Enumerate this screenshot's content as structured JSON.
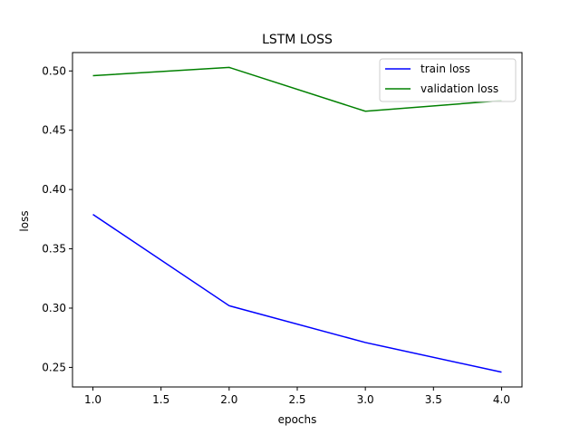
{
  "chart_data": {
    "type": "line",
    "title": "LSTM LOSS",
    "xlabel": "epochs",
    "ylabel": "loss",
    "x": [
      1.0,
      2.0,
      3.0,
      4.0
    ],
    "xlim": [
      0.85,
      4.15
    ],
    "ylim": [
      0.2335,
      0.5155
    ],
    "xticks": [
      "1.0",
      "1.5",
      "2.0",
      "2.5",
      "3.0",
      "3.5",
      "4.0"
    ],
    "yticks": [
      "0.25",
      "0.30",
      "0.35",
      "0.40",
      "0.45",
      "0.50"
    ],
    "grid": false,
    "legend_position": "top-right",
    "series": [
      {
        "name": "train loss",
        "color": "#0000ff",
        "values": [
          0.379,
          0.302,
          0.271,
          0.246
        ]
      },
      {
        "name": "validation loss",
        "color": "#008000",
        "values": [
          0.496,
          0.503,
          0.466,
          0.475
        ]
      }
    ]
  }
}
